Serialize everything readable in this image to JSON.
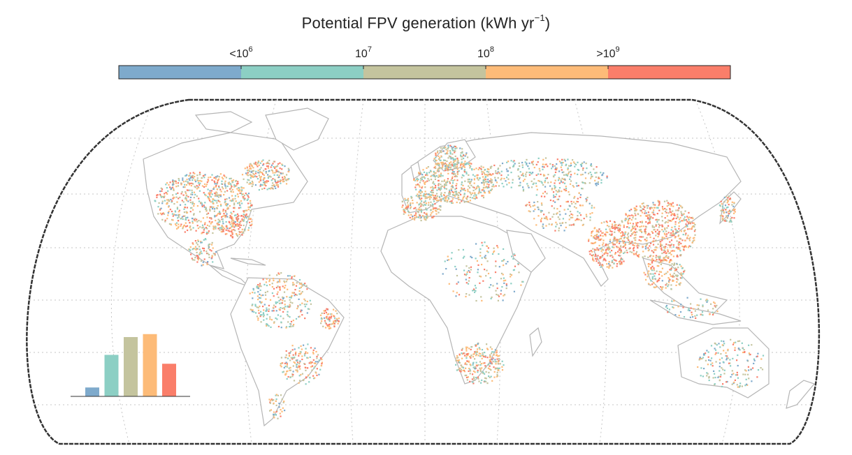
{
  "legend": {
    "title_main": "Potential FPV generation (kWh yr",
    "title_exp": "−1",
    "title_close": ")",
    "bins": [
      {
        "color": "#7eaacc"
      },
      {
        "color": "#8ccfc4"
      },
      {
        "color": "#c4c49e"
      },
      {
        "color": "#fdbb78"
      },
      {
        "color": "#fa7e6a"
      }
    ],
    "tick_labels": [
      {
        "prefix": "<10",
        "exp": "6"
      },
      {
        "prefix": "10",
        "exp": "7"
      },
      {
        "prefix": "10",
        "exp": "8"
      },
      {
        "prefix": ">10",
        "exp": "9"
      }
    ]
  },
  "map": {
    "projection": "equal-earth",
    "graticule": "dotted",
    "land_outline_color": "#b5b5b5",
    "border_color": "#9a9a9a"
  },
  "inset_histogram": {
    "relative_heights": [
      0.15,
      0.7,
      1.0,
      1.05,
      0.55
    ],
    "colors": [
      "#7eaacc",
      "#8ccfc4",
      "#c4c49e",
      "#fdbb78",
      "#fa7e6a"
    ]
  }
}
